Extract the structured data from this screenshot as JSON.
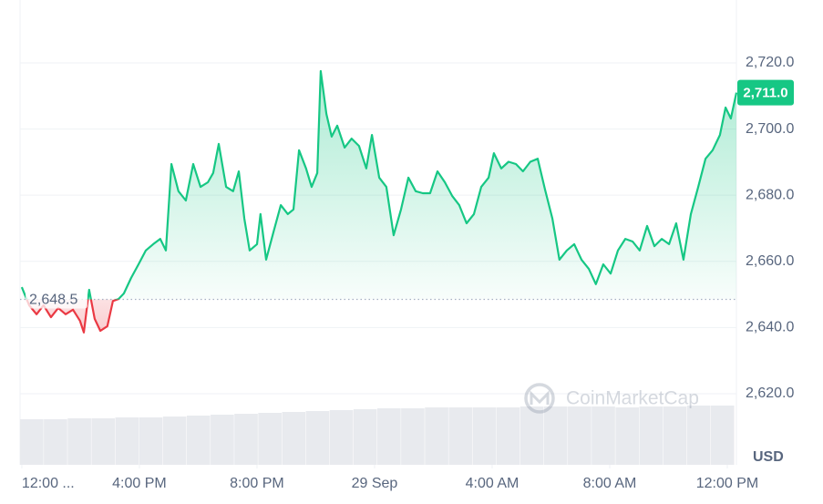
{
  "chart_data": {
    "type": "line",
    "x": [
      0,
      0.25,
      0.5,
      0.74,
      0.99,
      1.24,
      1.49,
      1.74,
      1.98,
      2.11,
      2.29,
      2.48,
      2.67,
      2.91,
      3.1,
      3.29,
      3.47,
      3.72,
      3.97,
      4.22,
      4.47,
      4.71,
      4.9,
      5.09,
      5.33,
      5.58,
      5.83,
      6.08,
      6.33,
      6.51,
      6.7,
      6.95,
      7.19,
      7.38,
      7.57,
      7.75,
      8.0,
      8.12,
      8.31,
      8.56,
      8.81,
      9.05,
      9.24,
      9.43,
      9.67,
      9.86,
      10.05,
      10.17,
      10.36,
      10.54,
      10.73,
      10.98,
      11.22,
      11.47,
      11.72,
      11.91,
      12.16,
      12.4,
      12.65,
      12.9,
      13.15,
      13.4,
      13.64,
      13.89,
      14.14,
      14.39,
      14.64,
      14.88,
      15.13,
      15.38,
      15.63,
      15.88,
      16.06,
      16.31,
      16.56,
      16.81,
      17.05,
      17.3,
      17.55,
      17.8,
      18.05,
      18.29,
      18.54,
      18.79,
      19.04,
      19.29,
      19.53,
      19.78,
      20.03,
      20.28,
      20.53,
      20.78,
      21.02,
      21.27,
      21.52,
      21.77,
      22.02,
      22.26,
      22.51,
      22.76,
      23.01,
      23.26,
      23.5,
      23.75,
      23.94,
      24.12,
      24.31
    ],
    "series": [
      {
        "color": "#16c784",
        "color_below": "#ea3943",
        "values": [
          2652.2,
          2646.7,
          2644,
          2646.7,
          2643.1,
          2645.9,
          2644,
          2645.4,
          2642,
          2638.5,
          2651.4,
          2642.6,
          2639,
          2640.4,
          2648,
          2648.6,
          2650.3,
          2655,
          2659.1,
          2663.3,
          2665.2,
          2666.8,
          2663.3,
          2689.4,
          2681.2,
          2678.4,
          2689.4,
          2682.5,
          2683.9,
          2686.7,
          2695.5,
          2682.5,
          2681.2,
          2687.2,
          2672.9,
          2663.3,
          2665.2,
          2674.3,
          2660.5,
          2668.8,
          2677,
          2674.3,
          2675.7,
          2693.6,
          2688.1,
          2682.5,
          2686.7,
          2717.5,
          2704.6,
          2697.7,
          2701,
          2694.4,
          2697.1,
          2694.9,
          2688.1,
          2698.2,
          2685.3,
          2682.5,
          2667.9,
          2675.7,
          2685.3,
          2681.2,
          2680.6,
          2680.6,
          2687.2,
          2683.9,
          2679.8,
          2677,
          2671.5,
          2674.3,
          2682.5,
          2685.3,
          2692.7,
          2688.1,
          2690.1,
          2689.4,
          2687.2,
          2690.1,
          2691,
          2681.7,
          2672.9,
          2660.5,
          2663.3,
          2665.2,
          2660.5,
          2657.7,
          2653.1,
          2659.1,
          2656.3,
          2663.3,
          2666.8,
          2666,
          2663.3,
          2670.7,
          2664.6,
          2666.8,
          2665.2,
          2671.5,
          2660.5,
          2674.3,
          2682.5,
          2691,
          2693.6,
          2698.2,
          2706.5,
          2703.2,
          2711
        ]
      }
    ],
    "baseline": {
      "value": 2648.5,
      "label": "2,648.5"
    },
    "current_price": {
      "value": 2711.0,
      "label": "2,711.0"
    },
    "xlim": [
      -0.06,
      24.31
    ],
    "xticks": [
      {
        "value": 0,
        "label": "12:00 ..."
      },
      {
        "value": 4,
        "label": "4:00 PM"
      },
      {
        "value": 8,
        "label": "8:00 PM"
      },
      {
        "value": 12,
        "label": "29 Sep"
      },
      {
        "value": 16,
        "label": "4:00 AM"
      },
      {
        "value": 20,
        "label": "8:00 AM"
      },
      {
        "value": 24,
        "label": "12:00 PM"
      }
    ],
    "ylim": [
      2598.5,
      2739
    ],
    "yticks": [
      {
        "value": 2620,
        "label": "2,620.0"
      },
      {
        "value": 2640,
        "label": "2,640.0"
      },
      {
        "value": 2660,
        "label": "2,660.0"
      },
      {
        "value": 2680,
        "label": "2,680.0"
      },
      {
        "value": 2700,
        "label": "2,700.0"
      },
      {
        "value": 2720,
        "label": "2,720.0"
      }
    ],
    "grid": true,
    "unit": "USD",
    "watermark": "CoinMarketCap",
    "volume": {
      "color": "#e8eaee",
      "values": [
        50,
        50,
        51,
        51,
        52,
        52,
        53,
        54,
        55,
        56,
        57,
        58,
        59,
        60,
        61,
        62,
        62,
        63,
        63,
        63,
        63,
        64,
        64,
        64,
        64,
        63,
        64,
        64,
        65,
        65
      ]
    }
  }
}
